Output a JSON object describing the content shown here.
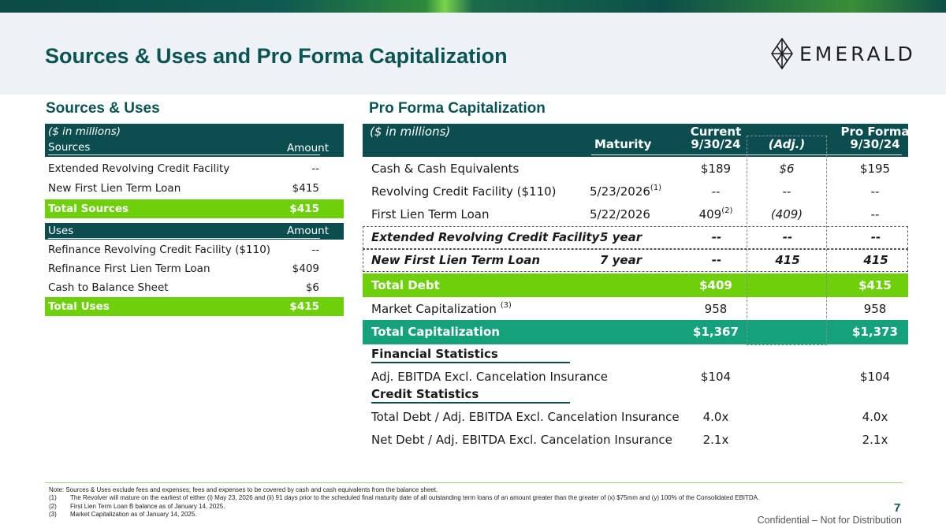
{
  "title": "Sources & Uses and Pro Forma Capitalization",
  "logo_text": "EMERALD",
  "left": {
    "section_title": "Sources & Uses",
    "units": "($ in millions)",
    "sources_header": {
      "label": "Sources",
      "amount": "Amount"
    },
    "sources": [
      {
        "label": "Extended Revolving Credit Facility",
        "amount": "--"
      },
      {
        "label": "New First Lien Term Loan",
        "amount": "$415"
      }
    ],
    "sources_total": {
      "label": "Total Sources",
      "amount": "$415"
    },
    "uses_header": {
      "label": "Uses",
      "amount": "Amount"
    },
    "uses": [
      {
        "label": "Refinance Revolving Credit Facility ($110)",
        "amount": "--"
      },
      {
        "label": "Refinance First Lien Term Loan",
        "amount": "$409"
      },
      {
        "label": "Cash to Balance Sheet",
        "amount": "$6"
      }
    ],
    "uses_total": {
      "label": "Total Uses",
      "amount": "$415"
    }
  },
  "right": {
    "section_title": "Pro Forma Capitalization",
    "units": "($ in millions)",
    "header": {
      "maturity": "Maturity",
      "current_1": "Current",
      "current_2": "9/30/24",
      "adj": "(Adj.)",
      "pf_1": "Pro Forma",
      "pf_2": "9/30/24"
    },
    "rows": [
      {
        "label": "Cash & Cash Equivalents",
        "maturity": "",
        "mat_note": "",
        "current": "$189",
        "cur_note": "",
        "adj": "$6",
        "pro_forma": "$195"
      },
      {
        "label": "Revolving Credit Facility ($110)",
        "maturity": "5/23/2026",
        "mat_note": "(1)",
        "current": "--",
        "cur_note": "",
        "adj": "--",
        "pro_forma": "--"
      },
      {
        "label": "First Lien Term Loan",
        "maturity": "5/22/2026",
        "mat_note": "",
        "current": "409",
        "cur_note": "(2)",
        "adj": "(409)",
        "pro_forma": "--"
      },
      {
        "label": "Extended Revolving Credit Facility",
        "maturity": "5 year",
        "mat_note": "",
        "current": "--",
        "cur_note": "",
        "adj": "--",
        "pro_forma": "--"
      },
      {
        "label": "New First Lien Term Loan",
        "maturity": "7 year",
        "mat_note": "",
        "current": "--",
        "cur_note": "",
        "adj": "415",
        "pro_forma": "415"
      }
    ],
    "total_debt": {
      "label": "Total Debt",
      "current": "$409",
      "pro_forma": "$415"
    },
    "market_cap": {
      "label": "Market Capitalization",
      "note": "(3)",
      "current": "958",
      "pro_forma": "958"
    },
    "total_cap": {
      "label": "Total Capitalization",
      "current": "$1,367",
      "pro_forma": "$1,373"
    },
    "financial_stats_title": "Financial Statistics",
    "financial_stats": [
      {
        "label": "Adj. EBITDA Excl. Cancelation Insurance",
        "current": "$104",
        "pro_forma": "$104"
      }
    ],
    "credit_stats_title": "Credit Statistics",
    "credit_stats": [
      {
        "label": "Total Debt / Adj. EBITDA Excl. Cancelation Insurance",
        "current": "4.0x",
        "pro_forma": "4.0x"
      },
      {
        "label": "Net Debt / Adj. EBITDA Excl. Cancelation Insurance",
        "current": "2.1x",
        "pro_forma": "2.1x"
      }
    ]
  },
  "notes": {
    "intro": "Note: Sources & Uses exclude fees and expenses; fees and expenses to be covered by cash and cash equivalents from the balance sheet.",
    "items": [
      {
        "key": "(1)",
        "text": "The Revolver will mature on the earliest of either (i) May 23, 2026 and (ii) 91 days prior to the scheduled final maturity date of all outstanding term loans of an amount greater than the greater of (x) $75mm and (y) 100% of the Consolidated EBITDA."
      },
      {
        "key": "(2)",
        "text": "First Lien Term Loan B balance as of January 14, 2025."
      },
      {
        "key": "(3)",
        "text": "Market Capitalization as of January 14, 2025."
      }
    ]
  },
  "page_number": "7",
  "confidential": "Confidential – Not for Distribution",
  "colors": {
    "brand_teal": "#0a5454",
    "dark_header": "#0c4e4f",
    "green": "#6dd00a",
    "teal_row": "#14a17c"
  }
}
